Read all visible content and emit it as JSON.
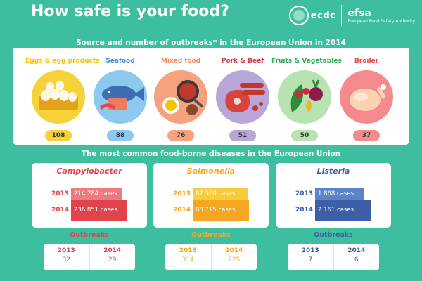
{
  "header": {
    "title": "How safe is your food?",
    "logo_ecdc": "ecdc",
    "logo_efsa": "efsa",
    "logo_efsa_sub": "European Food Safety Authority"
  },
  "sources": {
    "title": "Source and number of outbreaks* in the European Union in 2014",
    "categories": [
      {
        "label": "Eggs & egg products",
        "count": "108",
        "color": "#f5c400",
        "circle": "#f5d13a",
        "icon": "eggs-icon"
      },
      {
        "label": "Seafood",
        "count": "88",
        "color": "#3c8fd6",
        "circle": "#8dc8ef",
        "icon": "fish-icon"
      },
      {
        "label": "Mixed food",
        "count": "76",
        "color": "#f08a5d",
        "circle": "#f6a27e",
        "icon": "mixed-food-icon"
      },
      {
        "label": "Pork & Beef",
        "count": "51",
        "color": "#cf3b46",
        "circle": "#b8a6d9",
        "icon": "meat-icon"
      },
      {
        "label": "Fruits & Vegetables",
        "count": "50",
        "color": "#34a853",
        "circle": "#b7e3b0",
        "icon": "fruits-vegetables-icon"
      },
      {
        "label": "Broiler",
        "count": "37",
        "color": "#e8464a",
        "circle": "#f38a8d",
        "icon": "chicken-icon"
      }
    ]
  },
  "diseases": {
    "title": "The most common food-borne diseases in the European Union",
    "outbreaks_label": "Outbreaks",
    "items": [
      {
        "name": "Campylobacter",
        "color": "#e0434b",
        "light": "#ee7a80",
        "cases": [
          {
            "year": "2013",
            "label": "214 784 cases",
            "value": 214784
          },
          {
            "year": "2014",
            "label": "236 851 cases",
            "value": 236851
          }
        ],
        "outbreaks": [
          {
            "year": "2013",
            "value": "32"
          },
          {
            "year": "2014",
            "value": "29"
          }
        ]
      },
      {
        "name": "Salmonella",
        "color": "#f5a623",
        "light": "#f9cc3a",
        "cases": [
          {
            "year": "2013",
            "label": "87 360 cases",
            "value": 87360
          },
          {
            "year": "2014",
            "label": "88 715 cases",
            "value": 88715
          }
        ],
        "outbreaks": [
          {
            "year": "2013",
            "value": "314"
          },
          {
            "year": "2014",
            "value": "225"
          }
        ]
      },
      {
        "name": "Listeria",
        "color": "#3d5fa8",
        "light": "#5a85c9",
        "cases": [
          {
            "year": "2013",
            "label": "1 868 cases",
            "value": 1868
          },
          {
            "year": "2014",
            "label": "2 161 cases",
            "value": 2161
          }
        ],
        "outbreaks": [
          {
            "year": "2013",
            "value": "7"
          },
          {
            "year": "2014",
            "value": "6"
          }
        ]
      }
    ]
  }
}
